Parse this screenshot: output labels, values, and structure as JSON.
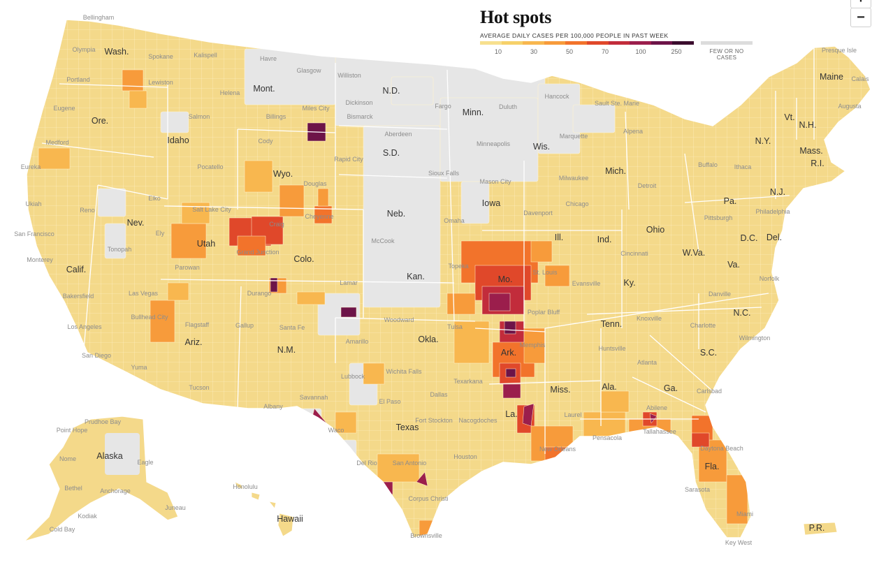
{
  "legend": {
    "title": "Hot spots",
    "subtitle": "AVERAGE DAILY CASES PER 100,000 PEOPLE IN PAST WEEK",
    "ticks": [
      "10",
      "30",
      "50",
      "70",
      "100",
      "250"
    ],
    "no_cases_label": "FEW OR NO CASES",
    "ramp_colors": [
      "#f7e08e",
      "#f6d16a",
      "#f8b74f",
      "#f79b3b",
      "#f2732b",
      "#e0482a",
      "#c22c3b",
      "#9b1e4c",
      "#6d1448",
      "#3b0d2e"
    ],
    "no_cases_color": "#dcdcdc",
    "base_color": "#f4d98a"
  },
  "zoom": {
    "in_label": "+",
    "out_label": "−"
  },
  "states": [
    {
      "name": "Wash."
    },
    {
      "name": "Ore."
    },
    {
      "name": "Calif."
    },
    {
      "name": "Idaho"
    },
    {
      "name": "Nev."
    },
    {
      "name": "Mont."
    },
    {
      "name": "Wyo."
    },
    {
      "name": "Utah"
    },
    {
      "name": "Ariz."
    },
    {
      "name": "Colo."
    },
    {
      "name": "N.M."
    },
    {
      "name": "N.D."
    },
    {
      "name": "S.D."
    },
    {
      "name": "Neb."
    },
    {
      "name": "Kan."
    },
    {
      "name": "Okla."
    },
    {
      "name": "Texas"
    },
    {
      "name": "Minn."
    },
    {
      "name": "Iowa"
    },
    {
      "name": "Mo."
    },
    {
      "name": "Ark."
    },
    {
      "name": "La."
    },
    {
      "name": "Wis."
    },
    {
      "name": "Ill."
    },
    {
      "name": "Mich."
    },
    {
      "name": "Ind."
    },
    {
      "name": "Ohio"
    },
    {
      "name": "Ky."
    },
    {
      "name": "Tenn."
    },
    {
      "name": "Miss."
    },
    {
      "name": "Ala."
    },
    {
      "name": "Ga."
    },
    {
      "name": "Fla."
    },
    {
      "name": "S.C."
    },
    {
      "name": "N.C."
    },
    {
      "name": "Va."
    },
    {
      "name": "W.Va."
    },
    {
      "name": "Pa."
    },
    {
      "name": "N.Y."
    },
    {
      "name": "Vt."
    },
    {
      "name": "N.H."
    },
    {
      "name": "Maine"
    },
    {
      "name": "Mass."
    },
    {
      "name": "R.I."
    },
    {
      "name": "N.J."
    },
    {
      "name": "Del."
    },
    {
      "name": "D.C."
    },
    {
      "name": "Alaska"
    },
    {
      "name": "Hawaii"
    },
    {
      "name": "P.R."
    }
  ],
  "cities": [
    {
      "name": "Bellingham"
    },
    {
      "name": "Olympia"
    },
    {
      "name": "Spokane"
    },
    {
      "name": "Kalispell"
    },
    {
      "name": "Havre"
    },
    {
      "name": "Glasgow"
    },
    {
      "name": "Williston"
    },
    {
      "name": "Portland"
    },
    {
      "name": "Lewiston"
    },
    {
      "name": "Helena"
    },
    {
      "name": "Eugene"
    },
    {
      "name": "Miles City"
    },
    {
      "name": "Dickinson"
    },
    {
      "name": "Fargo"
    },
    {
      "name": "Duluth"
    },
    {
      "name": "Hancock"
    },
    {
      "name": "Sault Ste. Marie"
    },
    {
      "name": "Presque Isle"
    },
    {
      "name": "Calais"
    },
    {
      "name": "Salmon"
    },
    {
      "name": "Billings"
    },
    {
      "name": "Bismarck"
    },
    {
      "name": "Augusta"
    },
    {
      "name": "Medford"
    },
    {
      "name": "Cody"
    },
    {
      "name": "Aberdeen"
    },
    {
      "name": "Marquette"
    },
    {
      "name": "Alpena"
    },
    {
      "name": "Minneapolis"
    },
    {
      "name": "Rapid City"
    },
    {
      "name": "Eureka"
    },
    {
      "name": "Pocatello"
    },
    {
      "name": "Douglas"
    },
    {
      "name": "Sioux Falls"
    },
    {
      "name": "Buffalo"
    },
    {
      "name": "Ithaca"
    },
    {
      "name": "Milwaukee"
    },
    {
      "name": "Detroit"
    },
    {
      "name": "Ukiah"
    },
    {
      "name": "Elko"
    },
    {
      "name": "Mason City"
    },
    {
      "name": "Reno"
    },
    {
      "name": "Salt Lake City"
    },
    {
      "name": "Cheyenne"
    },
    {
      "name": "Chicago"
    },
    {
      "name": "Pittsburgh"
    },
    {
      "name": "Philadelphia"
    },
    {
      "name": "Ely"
    },
    {
      "name": "Craig"
    },
    {
      "name": "Omaha"
    },
    {
      "name": "Davenport"
    },
    {
      "name": "San Francisco"
    },
    {
      "name": "McCook"
    },
    {
      "name": "Tonopah"
    },
    {
      "name": "Grand Junction"
    },
    {
      "name": "Cincinnati"
    },
    {
      "name": "Monterey"
    },
    {
      "name": "Parowan"
    },
    {
      "name": "Topeka"
    },
    {
      "name": "St. Louis"
    },
    {
      "name": "Evansville"
    },
    {
      "name": "Norfolk"
    },
    {
      "name": "Lamar"
    },
    {
      "name": "Las Vegas"
    },
    {
      "name": "Durango"
    },
    {
      "name": "Bakersfield"
    },
    {
      "name": "Poplar Bluff"
    },
    {
      "name": "Danville"
    },
    {
      "name": "Bullhead City"
    },
    {
      "name": "Knoxville"
    },
    {
      "name": "Woodward"
    },
    {
      "name": "Charlotte"
    },
    {
      "name": "Flagstaff"
    },
    {
      "name": "Gallup"
    },
    {
      "name": "Santa Fe"
    },
    {
      "name": "Los Angeles"
    },
    {
      "name": "Tulsa"
    },
    {
      "name": "Amarillo"
    },
    {
      "name": "Memphis"
    },
    {
      "name": "Wilmington"
    },
    {
      "name": "Huntsville"
    },
    {
      "name": "San Diego"
    },
    {
      "name": "Atlanta"
    },
    {
      "name": "Yuma"
    },
    {
      "name": "Wichita Falls"
    },
    {
      "name": "Lubbock"
    },
    {
      "name": "Texarkana"
    },
    {
      "name": "Tucson"
    },
    {
      "name": "Dallas"
    },
    {
      "name": "Carlsbad"
    },
    {
      "name": "Savannah"
    },
    {
      "name": "Albany"
    },
    {
      "name": "El Paso"
    },
    {
      "name": "Abilene"
    },
    {
      "name": "Laurel"
    },
    {
      "name": "Waco"
    },
    {
      "name": "Fort Stockton"
    },
    {
      "name": "Nacogdoches"
    },
    {
      "name": "Pensacola"
    },
    {
      "name": "Tallahassee"
    },
    {
      "name": "Point Hope"
    },
    {
      "name": "Prudhoe Bay"
    },
    {
      "name": "New Orleans"
    },
    {
      "name": "Daytona Beach"
    },
    {
      "name": "Nome"
    },
    {
      "name": "Eagle"
    },
    {
      "name": "Houston"
    },
    {
      "name": "Del Rio"
    },
    {
      "name": "San Antonio"
    },
    {
      "name": "Bethel"
    },
    {
      "name": "Anchorage"
    },
    {
      "name": "Honolulu"
    },
    {
      "name": "Sarasota"
    },
    {
      "name": "Juneau"
    },
    {
      "name": "Corpus Christi"
    },
    {
      "name": "Kodiak"
    },
    {
      "name": "Miami"
    },
    {
      "name": "Cold Bay"
    },
    {
      "name": "Brownsville"
    },
    {
      "name": "Key West"
    }
  ]
}
